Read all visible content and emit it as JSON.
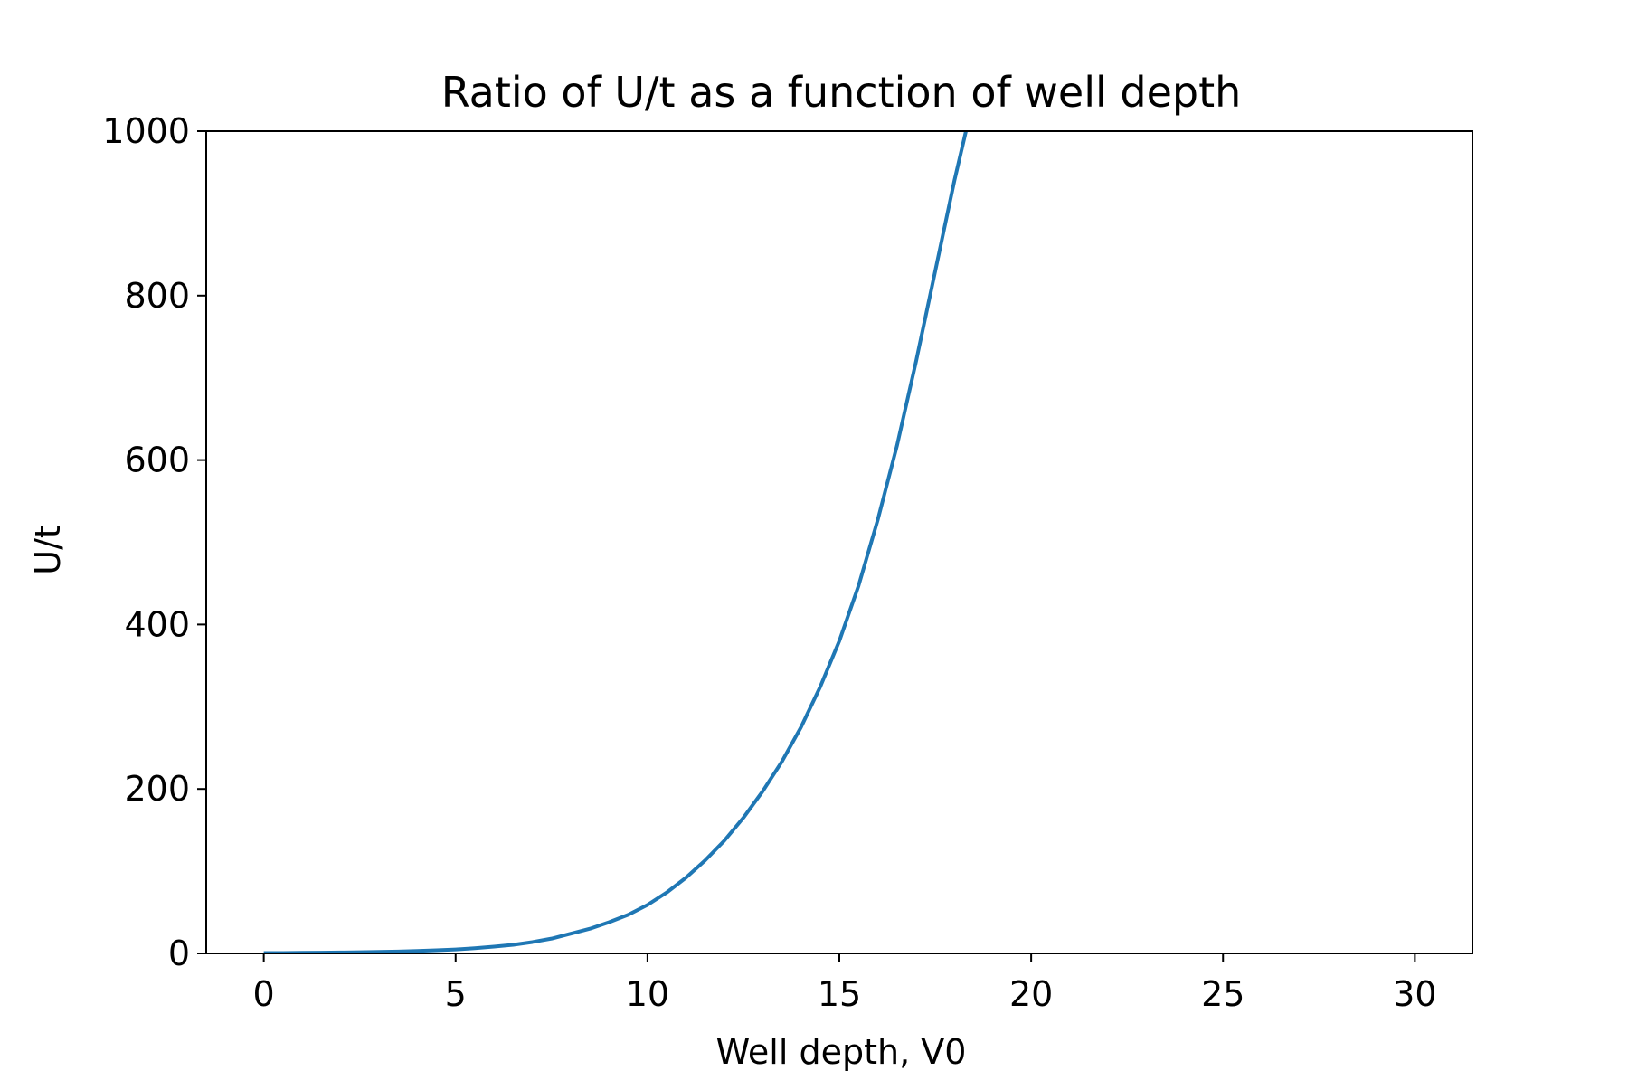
{
  "chart_data": {
    "type": "line",
    "title": "Ratio of U/t as a function of well depth",
    "xlabel": "Well depth, V0",
    "ylabel": "U/t",
    "xlim": [
      -1.5,
      31.5
    ],
    "ylim": [
      0,
      1000
    ],
    "xticks": [
      0,
      5,
      10,
      15,
      20,
      25,
      30
    ],
    "xtick_labels": [
      "0",
      "5",
      "10",
      "15",
      "20",
      "25",
      "30"
    ],
    "yticks": [
      0,
      200,
      400,
      600,
      800,
      1000
    ],
    "ytick_labels": [
      "0",
      "200",
      "400",
      "600",
      "800",
      "1000"
    ],
    "grid": false,
    "series": [
      {
        "color": "#1f77b4",
        "x": [
          0,
          0.5,
          1,
          1.5,
          2,
          2.5,
          3,
          3.5,
          4,
          4.5,
          5,
          5.5,
          6,
          6.5,
          7,
          7.5,
          8,
          8.5,
          9,
          9.5,
          10,
          10.5,
          11,
          11.5,
          12,
          12.5,
          13,
          13.5,
          14,
          14.5,
          15,
          15.5,
          16,
          16.5,
          17,
          17.5,
          18,
          18.3
        ],
        "y": [
          0.5,
          0.6,
          0.8,
          1.0,
          1.2,
          1.5,
          1.9,
          2.4,
          3.0,
          3.8,
          4.8,
          6.3,
          8.3,
          10.5,
          13.8,
          18,
          24,
          30,
          38,
          47,
          59,
          74,
          92,
          113,
          137,
          165,
          197,
          233,
          275,
          324,
          380,
          447,
          527,
          617,
          720,
          830,
          940,
          1000
        ]
      }
    ]
  }
}
